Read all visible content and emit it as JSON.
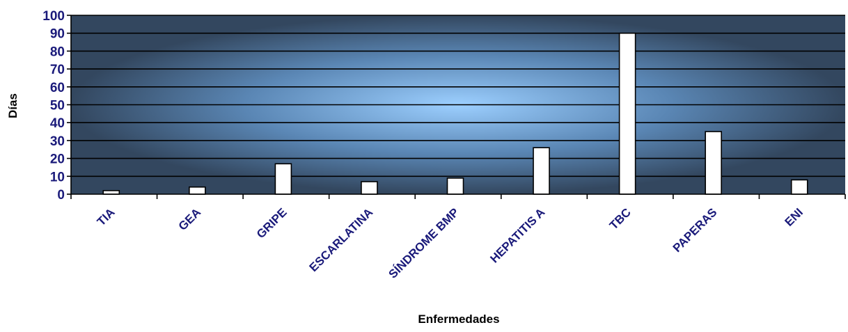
{
  "chart_data": {
    "type": "bar",
    "categories": [
      "TIA",
      "GEA",
      "GRIPE",
      "ESCARLATINA",
      "SÍNDROME BMP",
      "HEPATITIS A",
      "TBC",
      "PAPERAS",
      "ENI"
    ],
    "values": [
      2,
      4,
      17,
      7,
      9,
      26,
      90,
      35,
      8
    ],
    "title": "",
    "xlabel": "Enfermedades",
    "ylabel": "Días",
    "ylim": [
      0,
      100
    ],
    "yticks": [
      0,
      10,
      20,
      30,
      40,
      50,
      60,
      70,
      80,
      90,
      100
    ],
    "grid": true,
    "legend": "none"
  },
  "colors": {
    "tick_label": "#1a1a7a",
    "axis_title": "#000000",
    "bar_fill": "#ffffff",
    "bar_stroke": "#000000",
    "gridline": "#000000",
    "plot_center": "#9ccfff",
    "plot_mid": "#5a86b4",
    "plot_edge": "#33475f"
  }
}
